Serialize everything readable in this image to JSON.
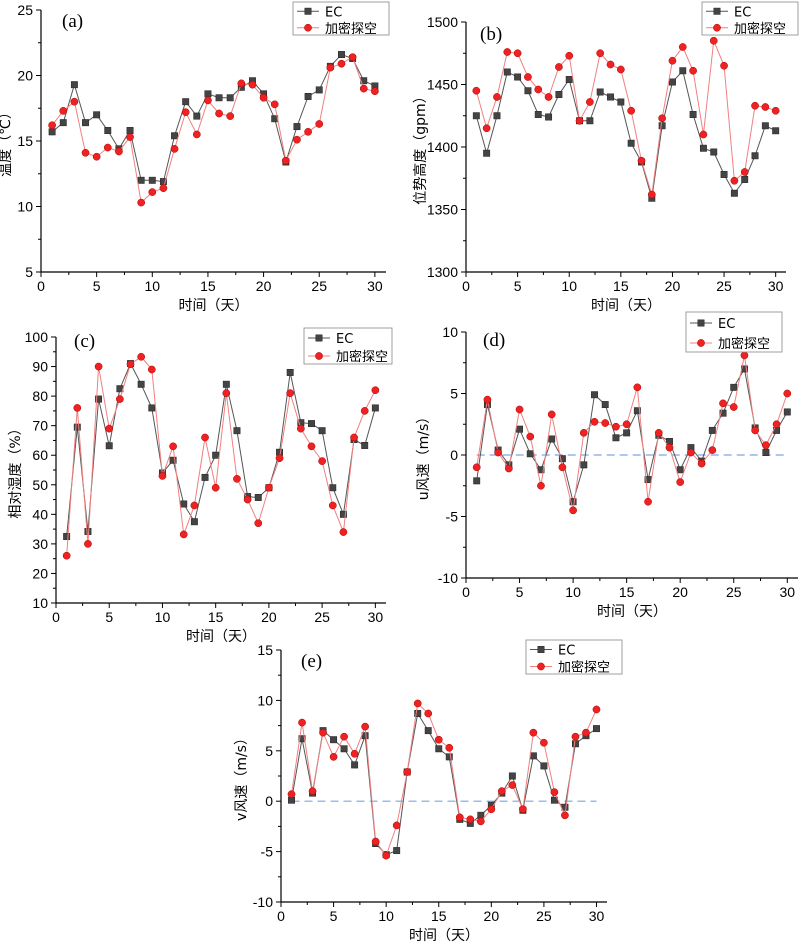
{
  "figure": {
    "x_title": "时间（天）",
    "legend": {
      "ec": "EC",
      "dr": "加密探空"
    },
    "colors": {
      "ec": "#444444",
      "dr": "#ee2222",
      "zero_line": "#7aa6e0"
    }
  },
  "chart_data": [
    {
      "id": "a",
      "label": "(a)",
      "type": "line",
      "title": "",
      "xlabel": "时间（天）",
      "ylabel": "温度（℃）",
      "xlim": [
        0,
        31
      ],
      "ylim": [
        5,
        25
      ],
      "xticks": [
        0,
        5,
        10,
        15,
        20,
        25,
        30
      ],
      "yticks": [
        5,
        10,
        15,
        20,
        25
      ],
      "legend_position": "top-right",
      "zero_line": false,
      "x": [
        1,
        2,
        3,
        4,
        5,
        6,
        7,
        8,
        9,
        10,
        11,
        12,
        13,
        14,
        15,
        16,
        17,
        18,
        19,
        20,
        21,
        22,
        23,
        24,
        25,
        26,
        27,
        28,
        29,
        30
      ],
      "series": [
        {
          "name": "EC",
          "values": [
            15.7,
            16.4,
            19.3,
            16.4,
            17.0,
            15.8,
            14.4,
            15.8,
            12.0,
            12.0,
            11.9,
            15.4,
            18.0,
            16.9,
            18.6,
            18.3,
            18.3,
            19.1,
            19.6,
            18.6,
            16.7,
            13.4,
            16.1,
            18.4,
            18.9,
            20.7,
            21.6,
            21.3,
            19.6,
            19.2
          ]
        },
        {
          "name": "加密探空",
          "values": [
            16.2,
            17.3,
            18.0,
            14.1,
            13.8,
            14.5,
            14.2,
            15.3,
            10.3,
            11.1,
            11.4,
            14.4,
            17.2,
            15.5,
            18.1,
            17.1,
            16.9,
            19.4,
            19.3,
            18.3,
            17.8,
            13.5,
            15.1,
            15.7,
            16.3,
            20.6,
            20.9,
            21.4,
            19.0,
            18.8
          ]
        }
      ]
    },
    {
      "id": "b",
      "label": "(b)",
      "type": "line",
      "title": "",
      "xlabel": "时间（天）",
      "ylabel": "位势高度（gpm）",
      "xlim": [
        0,
        31
      ],
      "ylim": [
        1300,
        1500
      ],
      "xticks": [
        0,
        5,
        10,
        15,
        20,
        25,
        30
      ],
      "yticks": [
        1300,
        1350,
        1400,
        1450,
        1500
      ],
      "legend_position": "top-right",
      "zero_line": false,
      "x": [
        1,
        2,
        3,
        4,
        5,
        6,
        7,
        8,
        9,
        10,
        11,
        12,
        13,
        14,
        15,
        16,
        17,
        18,
        19,
        20,
        21,
        22,
        23,
        24,
        25,
        26,
        27,
        28,
        29,
        30
      ],
      "series": [
        {
          "name": "EC",
          "values": [
            1425,
            1395,
            1425,
            1460,
            1456,
            1445,
            1426,
            1424,
            1442,
            1454,
            1421,
            1421,
            1444,
            1440,
            1436,
            1403,
            1388,
            1359,
            1417,
            1452,
            1461,
            1426,
            1399,
            1396,
            1378,
            1363,
            1374,
            1393,
            1417,
            1413
          ]
        },
        {
          "name": "加密探空",
          "values": [
            1445,
            1415,
            1440,
            1476,
            1475,
            1456,
            1446,
            1440,
            1464,
            1473,
            1421,
            1436,
            1475,
            1466,
            1462,
            1429,
            1389,
            1362,
            1423,
            1469,
            1480,
            1461,
            1410,
            1485,
            1465,
            1373,
            1380,
            1433,
            1432,
            1429
          ]
        }
      ]
    },
    {
      "id": "c",
      "label": "(c)",
      "type": "line",
      "title": "",
      "xlabel": "时间（天）",
      "ylabel": "相对湿度（%）",
      "xlim": [
        0,
        31
      ],
      "ylim": [
        10,
        100
      ],
      "xticks": [
        0,
        5,
        10,
        15,
        20,
        25,
        30
      ],
      "yticks": [
        10,
        20,
        30,
        40,
        50,
        60,
        70,
        80,
        90,
        100
      ],
      "legend_position": "top-right",
      "zero_line": false,
      "x": [
        1,
        2,
        3,
        4,
        5,
        6,
        7,
        8,
        9,
        10,
        11,
        12,
        13,
        14,
        15,
        16,
        17,
        18,
        19,
        20,
        21,
        22,
        23,
        24,
        25,
        26,
        27,
        28,
        29,
        30
      ],
      "series": [
        {
          "name": "EC",
          "values": [
            32.5,
            69.5,
            34.2,
            79.0,
            63.2,
            82.5,
            91.0,
            84.0,
            76.0,
            54.0,
            58.3,
            43.5,
            37.5,
            52.5,
            60.0,
            84.0,
            68.3,
            46.0,
            45.7,
            49.0,
            61.0,
            88.0,
            71.0,
            70.7,
            68.3,
            49.0,
            40.0,
            65.3,
            63.3,
            76.0
          ]
        },
        {
          "name": "加密探空",
          "values": [
            26.0,
            76.0,
            30.0,
            90.0,
            69.0,
            79.0,
            90.8,
            93.3,
            89.0,
            53.0,
            63.0,
            33.2,
            43.0,
            66.0,
            49.0,
            81.0,
            52.0,
            45.0,
            37.0,
            49.0,
            59.0,
            81.0,
            69.0,
            63.0,
            58.0,
            43.0,
            34.0,
            66.0,
            75.0,
            82.0
          ]
        }
      ]
    },
    {
      "id": "d",
      "label": "(d)",
      "type": "line",
      "title": "",
      "xlabel": "时间（天）",
      "ylabel": "u风速（m/s）",
      "xlim": [
        0,
        31
      ],
      "ylim": [
        -10,
        10
      ],
      "xticks": [
        0,
        5,
        10,
        15,
        20,
        25,
        30
      ],
      "yticks": [
        -10,
        -5,
        0,
        5,
        10
      ],
      "legend_position": "top-right",
      "zero_line": true,
      "x": [
        1,
        2,
        3,
        4,
        5,
        6,
        7,
        8,
        9,
        10,
        11,
        12,
        13,
        14,
        15,
        16,
        17,
        18,
        19,
        20,
        21,
        22,
        23,
        24,
        25,
        26,
        27,
        28,
        29,
        30
      ],
      "series": [
        {
          "name": "EC",
          "values": [
            -2.1,
            4.1,
            0.4,
            -0.8,
            2.1,
            0.1,
            -1.2,
            1.3,
            -0.3,
            -3.8,
            -0.8,
            4.9,
            4.1,
            1.4,
            1.8,
            3.6,
            -2.0,
            1.6,
            1.1,
            -1.2,
            0.6,
            -0.5,
            2.0,
            3.4,
            5.5,
            7.0,
            2.2,
            0.2,
            2.0,
            3.5
          ]
        },
        {
          "name": "加密探空",
          "values": [
            -1.0,
            4.5,
            0.2,
            -1.1,
            3.7,
            1.5,
            -2.5,
            3.3,
            -1.0,
            -4.5,
            1.8,
            2.7,
            2.6,
            2.3,
            2.5,
            5.5,
            -3.8,
            1.8,
            0.6,
            -2.2,
            0.2,
            -0.7,
            0.4,
            4.2,
            3.9,
            8.1,
            2.0,
            0.8,
            2.5,
            5.0
          ]
        }
      ]
    },
    {
      "id": "e",
      "label": "(e)",
      "type": "line",
      "title": "",
      "xlabel": "时间（天）",
      "ylabel": "v风速（m/s）",
      "xlim": [
        0,
        31
      ],
      "ylim": [
        -10,
        15
      ],
      "xticks": [
        0,
        5,
        10,
        15,
        20,
        25,
        30
      ],
      "yticks": [
        -10,
        -5,
        0,
        5,
        10,
        15
      ],
      "legend_position": "top-right",
      "zero_line": true,
      "x": [
        1,
        2,
        3,
        4,
        5,
        6,
        7,
        8,
        9,
        10,
        11,
        12,
        13,
        14,
        15,
        16,
        17,
        18,
        19,
        20,
        21,
        22,
        23,
        24,
        25,
        26,
        27,
        28,
        29,
        30
      ],
      "series": [
        {
          "name": "EC",
          "values": [
            0.1,
            6.2,
            0.8,
            7.0,
            6.1,
            5.2,
            3.6,
            6.5,
            -4.2,
            -5.3,
            -4.9,
            2.9,
            8.7,
            7.0,
            5.2,
            4.4,
            -1.8,
            -2.2,
            -1.4,
            -0.4,
            0.8,
            2.5,
            -0.9,
            4.5,
            3.5,
            0.1,
            -0.6,
            5.7,
            6.5,
            7.2
          ]
        },
        {
          "name": "加密探空",
          "values": [
            0.7,
            7.8,
            1.0,
            6.8,
            4.4,
            6.4,
            4.7,
            7.4,
            -4.0,
            -5.4,
            -2.4,
            2.9,
            9.7,
            8.7,
            6.1,
            5.3,
            -1.6,
            -1.8,
            -2.0,
            -0.8,
            1.0,
            1.6,
            -0.8,
            6.8,
            5.8,
            0.9,
            -1.4,
            6.4,
            6.8,
            9.1
          ]
        }
      ]
    }
  ]
}
